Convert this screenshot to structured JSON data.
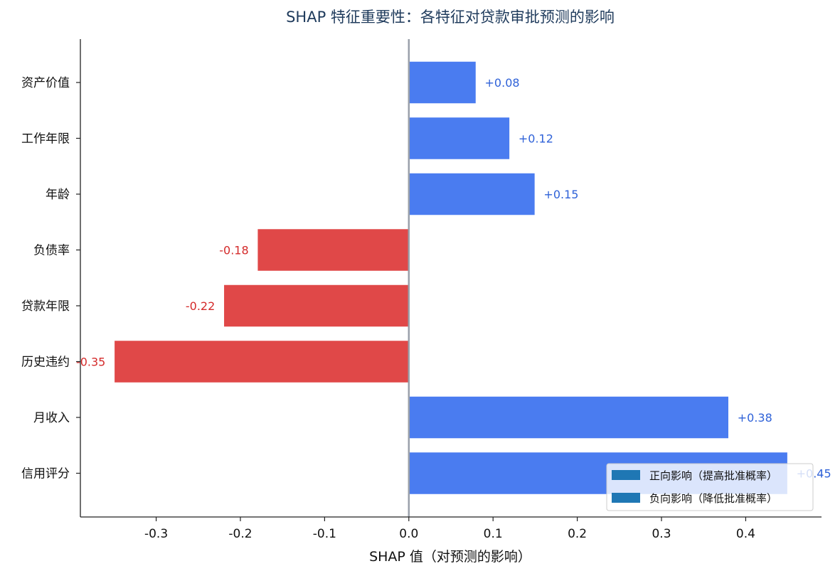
{
  "chart_data": {
    "type": "bar",
    "orientation": "horizontal",
    "title": "SHAP 特征重要性：各特征对贷款审批预测的影响",
    "xlabel": "SHAP 值（对预测的影响）",
    "ylabel": "",
    "categories": [
      "资产价值",
      "工作年限",
      "年龄",
      "负债率",
      "贷款年限",
      "历史违约",
      "月收入",
      "信用评分"
    ],
    "values": [
      0.08,
      0.12,
      0.15,
      -0.18,
      -0.22,
      -0.35,
      0.38,
      0.45
    ],
    "value_labels": [
      "+0.08",
      "+0.12",
      "+0.15",
      "-0.18",
      "-0.22",
      "-0.35",
      "+0.38",
      "+0.45"
    ],
    "xlim": [
      -0.39,
      0.49
    ],
    "xticks": [
      -0.3,
      -0.2,
      -0.1,
      0.0,
      0.1,
      0.2,
      0.3,
      0.4
    ],
    "xtick_labels": [
      "-0.3",
      "-0.2",
      "-0.1",
      "0.0",
      "0.1",
      "0.2",
      "0.3",
      "0.4"
    ],
    "grid": false,
    "legend_position": "bottom-right",
    "legend": [
      {
        "label": "正向影响（提高批准概率）",
        "color": "#1f77b4"
      },
      {
        "label": "负向影响（降低批准概率）",
        "color": "#1f77b4"
      }
    ],
    "colors": {
      "positive": "#4a7cf0",
      "negative": "#e04848",
      "positive_text": "#2f62d8",
      "negative_text": "#d42a2a",
      "zero_line": "#9aa0aa",
      "title": "#1f3b5c"
    }
  }
}
